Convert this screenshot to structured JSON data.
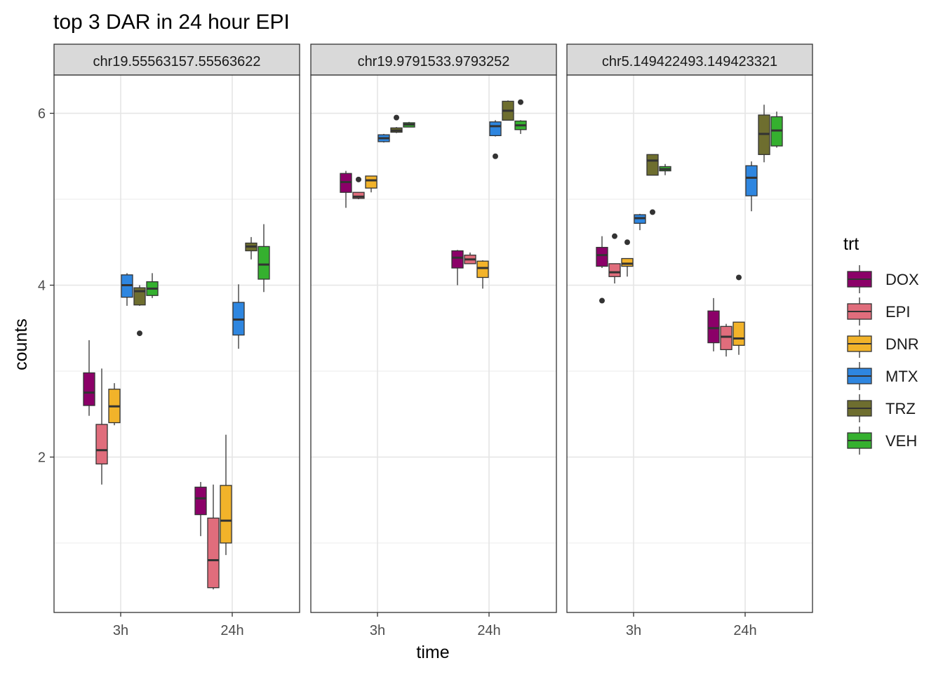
{
  "chart_data": {
    "type": "boxplot",
    "title": "top 3 DAR in 24 hour EPI",
    "xlabel": "time",
    "ylabel": "counts",
    "ylim": [
      0.3,
      6.5
    ],
    "y_ticks": [
      2,
      4,
      6
    ],
    "categories": [
      "3h",
      "24h"
    ],
    "legend": {
      "title": "trt",
      "position": "right",
      "entries": [
        "DOX",
        "EPI",
        "DNR",
        "MTX",
        "TRZ",
        "VEH"
      ]
    },
    "colors": {
      "DOX": "#8B0068",
      "EPI": "#E06D7C",
      "DNR": "#F2B32A",
      "MTX": "#2E86E0",
      "TRZ": "#6E6E2F",
      "VEH": "#35B02F"
    },
    "panels": [
      {
        "label": "chr19.55563157.55563622",
        "groups": [
          {
            "time": "3h",
            "trt": "DOX",
            "low": 2.48,
            "q1": 2.6,
            "median": 2.75,
            "q3": 2.98,
            "high": 3.36,
            "outliers": []
          },
          {
            "time": "3h",
            "trt": "EPI",
            "low": 1.68,
            "q1": 1.92,
            "median": 2.08,
            "q3": 2.38,
            "high": 3.03,
            "outliers": []
          },
          {
            "time": "3h",
            "trt": "DNR",
            "low": 2.37,
            "q1": 2.4,
            "median": 2.59,
            "q3": 2.79,
            "high": 2.86,
            "outliers": []
          },
          {
            "time": "3h",
            "trt": "MTX",
            "low": 3.76,
            "q1": 3.86,
            "median": 4.0,
            "q3": 4.12,
            "high": 4.14,
            "outliers": []
          },
          {
            "time": "3h",
            "trt": "TRZ",
            "low": 3.76,
            "q1": 3.77,
            "median": 3.93,
            "q3": 3.97,
            "high": 4.0,
            "outliers": [
              3.44
            ]
          },
          {
            "time": "3h",
            "trt": "VEH",
            "low": 3.85,
            "q1": 3.88,
            "median": 3.96,
            "q3": 4.04,
            "high": 4.14,
            "outliers": []
          },
          {
            "time": "24h",
            "trt": "DOX",
            "low": 1.08,
            "q1": 1.33,
            "median": 1.52,
            "q3": 1.65,
            "high": 1.71,
            "outliers": []
          },
          {
            "time": "24h",
            "trt": "EPI",
            "low": 0.46,
            "q1": 0.48,
            "median": 0.8,
            "q3": 1.29,
            "high": 1.68,
            "outliers": []
          },
          {
            "time": "24h",
            "trt": "DNR",
            "low": 0.86,
            "q1": 1.0,
            "median": 1.26,
            "q3": 1.67,
            "high": 2.26,
            "outliers": []
          },
          {
            "time": "24h",
            "trt": "MTX",
            "low": 3.26,
            "q1": 3.42,
            "median": 3.6,
            "q3": 3.8,
            "high": 4.01,
            "outliers": []
          },
          {
            "time": "24h",
            "trt": "TRZ",
            "low": 4.3,
            "q1": 4.4,
            "median": 4.45,
            "q3": 4.49,
            "high": 4.56,
            "outliers": []
          },
          {
            "time": "24h",
            "trt": "VEH",
            "low": 3.92,
            "q1": 4.07,
            "median": 4.24,
            "q3": 4.45,
            "high": 4.71,
            "outliers": []
          }
        ]
      },
      {
        "label": "chr19.9791533.9793252",
        "groups": [
          {
            "time": "3h",
            "trt": "DOX",
            "low": 4.9,
            "q1": 5.08,
            "median": 5.2,
            "q3": 5.3,
            "high": 5.33,
            "outliers": []
          },
          {
            "time": "3h",
            "trt": "EPI",
            "low": 5.0,
            "q1": 5.01,
            "median": 5.03,
            "q3": 5.08,
            "high": 5.08,
            "outliers": [
              5.23
            ]
          },
          {
            "time": "3h",
            "trt": "DNR",
            "low": 5.08,
            "q1": 5.13,
            "median": 5.22,
            "q3": 5.27,
            "high": 5.27,
            "outliers": []
          },
          {
            "time": "3h",
            "trt": "MTX",
            "low": 5.66,
            "q1": 5.67,
            "median": 5.71,
            "q3": 5.75,
            "high": 5.76,
            "outliers": []
          },
          {
            "time": "3h",
            "trt": "TRZ",
            "low": 5.77,
            "q1": 5.78,
            "median": 5.8,
            "q3": 5.83,
            "high": 5.84,
            "outliers": [
              5.95
            ]
          },
          {
            "time": "3h",
            "trt": "VEH",
            "low": 5.84,
            "q1": 5.84,
            "median": 5.87,
            "q3": 5.89,
            "high": 5.9,
            "outliers": []
          },
          {
            "time": "24h",
            "trt": "DOX",
            "low": 4.0,
            "q1": 4.2,
            "median": 4.32,
            "q3": 4.4,
            "high": 4.41,
            "outliers": []
          },
          {
            "time": "24h",
            "trt": "EPI",
            "low": 4.25,
            "q1": 4.25,
            "median": 4.3,
            "q3": 4.35,
            "high": 4.38,
            "outliers": []
          },
          {
            "time": "24h",
            "trt": "DNR",
            "low": 3.96,
            "q1": 4.09,
            "median": 4.2,
            "q3": 4.28,
            "high": 4.29,
            "outliers": []
          },
          {
            "time": "24h",
            "trt": "MTX",
            "low": 5.73,
            "q1": 5.74,
            "median": 5.85,
            "q3": 5.9,
            "high": 5.92,
            "outliers": [
              5.5
            ]
          },
          {
            "time": "24h",
            "trt": "TRZ",
            "low": 5.92,
            "q1": 5.92,
            "median": 6.03,
            "q3": 6.14,
            "high": 6.15,
            "outliers": []
          },
          {
            "time": "24h",
            "trt": "VEH",
            "low": 5.76,
            "q1": 5.81,
            "median": 5.86,
            "q3": 5.91,
            "high": 5.92,
            "outliers": [
              6.13
            ]
          }
        ]
      },
      {
        "label": "chr5.149422493.149423321",
        "groups": [
          {
            "time": "3h",
            "trt": "DOX",
            "low": 4.2,
            "q1": 4.22,
            "median": 4.35,
            "q3": 4.44,
            "high": 4.57,
            "outliers": [
              3.82
            ]
          },
          {
            "time": "3h",
            "trt": "EPI",
            "low": 4.02,
            "q1": 4.1,
            "median": 4.15,
            "q3": 4.25,
            "high": 4.25,
            "outliers": [
              4.57
            ]
          },
          {
            "time": "3h",
            "trt": "DNR",
            "low": 4.1,
            "q1": 4.22,
            "median": 4.25,
            "q3": 4.31,
            "high": 4.31,
            "outliers": [
              4.5
            ]
          },
          {
            "time": "3h",
            "trt": "MTX",
            "low": 4.64,
            "q1": 4.72,
            "median": 4.78,
            "q3": 4.82,
            "high": 4.83,
            "outliers": []
          },
          {
            "time": "3h",
            "trt": "TRZ",
            "low": 5.28,
            "q1": 5.28,
            "median": 5.45,
            "q3": 5.52,
            "high": 5.52,
            "outliers": [
              4.85
            ]
          },
          {
            "time": "3h",
            "trt": "VEH",
            "low": 5.28,
            "q1": 5.33,
            "median": 5.35,
            "q3": 5.38,
            "high": 5.41,
            "outliers": []
          },
          {
            "time": "24h",
            "trt": "DOX",
            "low": 3.23,
            "q1": 3.33,
            "median": 3.5,
            "q3": 3.7,
            "high": 3.85,
            "outliers": []
          },
          {
            "time": "24h",
            "trt": "EPI",
            "low": 3.17,
            "q1": 3.25,
            "median": 3.4,
            "q3": 3.52,
            "high": 3.55,
            "outliers": []
          },
          {
            "time": "24h",
            "trt": "DNR",
            "low": 3.19,
            "q1": 3.3,
            "median": 3.38,
            "q3": 3.57,
            "high": 3.57,
            "outliers": [
              4.09
            ]
          },
          {
            "time": "24h",
            "trt": "MTX",
            "low": 4.86,
            "q1": 5.04,
            "median": 5.25,
            "q3": 5.39,
            "high": 5.44,
            "outliers": []
          },
          {
            "time": "24h",
            "trt": "TRZ",
            "low": 5.43,
            "q1": 5.52,
            "median": 5.76,
            "q3": 5.98,
            "high": 6.1,
            "outliers": []
          },
          {
            "time": "24h",
            "trt": "VEH",
            "low": 5.6,
            "q1": 5.62,
            "median": 5.8,
            "q3": 5.96,
            "high": 6.02,
            "outliers": []
          }
        ]
      }
    ]
  }
}
